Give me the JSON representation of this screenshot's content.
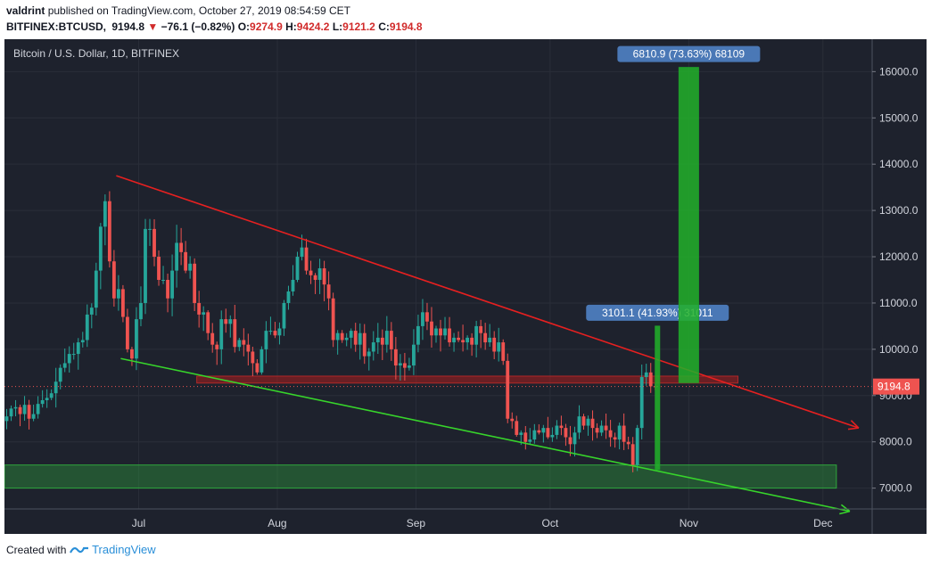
{
  "header": {
    "author": "valdrint",
    "published_text": "published on TradingView.com, October 27, 2019 08:54:59 CET",
    "symbol": "BITFINEX:BTCUSD,",
    "ticker": {
      "last": "9194.8",
      "change": "−76.1 (−0.82%)",
      "open_label": "O:",
      "open": "9274.9",
      "high_label": "H:",
      "high": "9424.2",
      "low_label": "L:",
      "low": "9121.2",
      "close_label": "C:",
      "close": "9194.8"
    }
  },
  "footer": {
    "created_with": "Created with",
    "brand": "TradingView"
  },
  "colors": {
    "background": "#1e222d",
    "up": "#26a69a",
    "down": "#ef5350",
    "resistance_line": "#e62020",
    "support_line": "#37d42b",
    "target_box": "#22b02a",
    "label_bg": "#4a78b6",
    "price_tag": "#ef5350"
  },
  "chart_data": {
    "type": "candlestick",
    "title": "Bitcoin / U.S. Dollar, 1D, BITFINEX",
    "ylim": [
      6550,
      16700
    ],
    "y_ticks": [
      7000,
      8000,
      9000,
      10000,
      11000,
      12000,
      13000,
      14000,
      15000,
      16000
    ],
    "y_tick_labels": [
      "7000.0",
      "8000.0",
      "9000.0",
      "10000.0",
      "11000.0",
      "12000.0",
      "13000.0",
      "14000.0",
      "15000.0",
      "16000.0"
    ],
    "x_range": [
      "2019-06-01",
      "2019-12-12"
    ],
    "x_ticks": [
      {
        "date": "2019-07-01",
        "label": "Jul"
      },
      {
        "date": "2019-08-01",
        "label": "Aug"
      },
      {
        "date": "2019-09-01",
        "label": "Sep"
      },
      {
        "date": "2019-10-01",
        "label": "Oct"
      },
      {
        "date": "2019-11-01",
        "label": "Nov"
      },
      {
        "date": "2019-12-01",
        "label": "Dec"
      }
    ],
    "current_price": 9194.8,
    "current_price_label": "9194.8",
    "grid": true,
    "ohlc_close": [
      8550,
      8720,
      8750,
      8600,
      8800,
      8500,
      8600,
      8820,
      8900,
      8950,
      9050,
      9300,
      9600,
      9700,
      9900,
      9900,
      10150,
      10200,
      10750,
      10900,
      11700,
      12650,
      13200,
      11900,
      11100,
      11300,
      10700,
      10000,
      9800,
      10650,
      11000,
      12600,
      12600,
      12000,
      11500,
      11500,
      11100,
      11700,
      12300,
      12100,
      11700,
      11850,
      11000,
      10750,
      10800,
      10350,
      10100,
      10000,
      10650,
      10550,
      10650,
      10050,
      10200,
      10100,
      9950,
      9700,
      9500,
      10000,
      10400,
      10400,
      10300,
      10450,
      11000,
      11250,
      11500,
      12000,
      12200,
      11700,
      11600,
      11500,
      11750,
      11400,
      11100,
      10200,
      10350,
      10200,
      10250,
      10400,
      10100,
      10350,
      9850,
      9950,
      10150,
      10250,
      10100,
      10400,
      10000,
      9650,
      9700,
      9600,
      9650,
      10100,
      10500,
      10800,
      10600,
      10300,
      10450,
      10300,
      10450,
      10150,
      10250,
      10200,
      10150,
      10250,
      10100,
      10500,
      10350,
      10150,
      10250,
      9950,
      10150,
      9750,
      8500,
      8450,
      8150,
      8200,
      8000,
      8050,
      8250,
      8200,
      8300,
      8100,
      8150,
      8350,
      8300,
      8100,
      7950,
      8200,
      8550,
      8350,
      8500,
      8300,
      8200,
      8350,
      8250,
      8100,
      8050,
      8350,
      8000,
      7950,
      7500,
      8300,
      9400,
      9500,
      9200,
      9194.8
    ],
    "resistance_line": {
      "from": [
        "2019-06-26",
        13750
      ],
      "to": [
        "2019-11-26",
        9150
      ],
      "arrow_to": [
        "2019-12-09",
        8300
      ]
    },
    "support_line": {
      "from": [
        "2019-06-27",
        9800
      ],
      "to": [
        "2019-11-26",
        7150
      ],
      "arrow_to": [
        "2019-12-07",
        6500
      ]
    },
    "zones": [
      {
        "name": "support-zone",
        "from": "2019-06-01",
        "to": "2019-12-04",
        "low": 7000,
        "high": 7500
      },
      {
        "name": "resistance-zone",
        "from": "2019-07-14",
        "to": "2019-11-12",
        "low": 9270,
        "high": 9420
      }
    ],
    "measurements": [
      {
        "label": "3101.1 (41.93%) 31011",
        "date": "2019-10-25",
        "from": 7400,
        "to": 10500,
        "color": "#22b02a"
      },
      {
        "label": "6810.9 (73.63%) 68109",
        "date": "2019-11-01",
        "from": 9280,
        "to": 16090,
        "color": "#22b02a"
      }
    ]
  }
}
